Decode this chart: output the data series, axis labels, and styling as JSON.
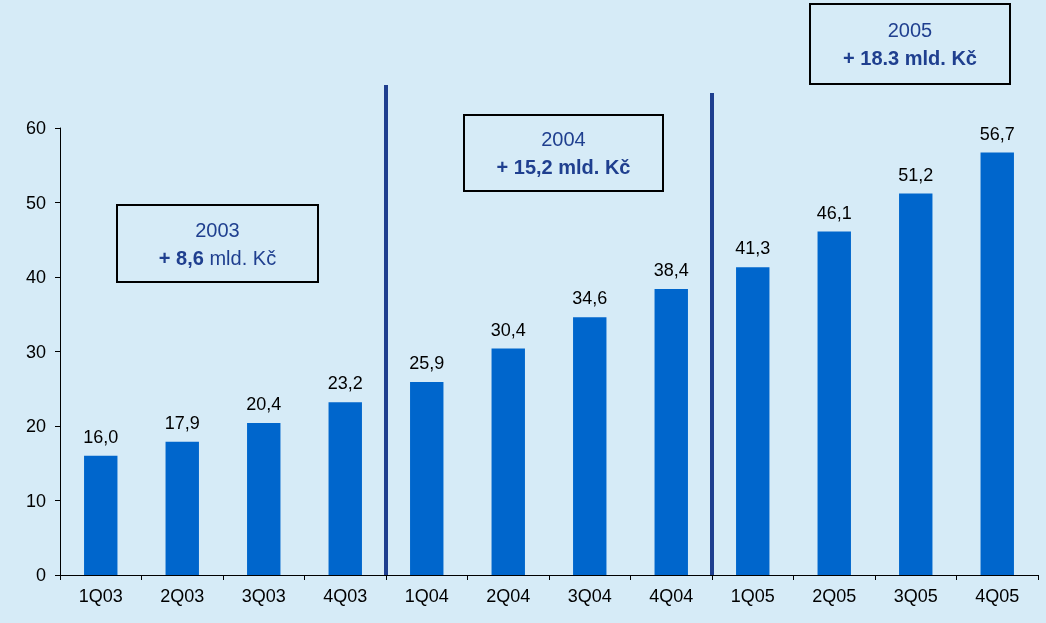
{
  "chart_data": {
    "type": "bar",
    "categories": [
      "1Q03",
      "2Q03",
      "3Q03",
      "4Q03",
      "1Q04",
      "2Q04",
      "3Q04",
      "4Q04",
      "1Q05",
      "2Q05",
      "3Q05",
      "4Q05"
    ],
    "values": [
      16.0,
      17.9,
      20.4,
      23.2,
      25.9,
      30.4,
      34.6,
      38.4,
      41.3,
      46.1,
      51.2,
      56.7
    ],
    "value_labels": [
      "16,0",
      "17,9",
      "20,4",
      "23,2",
      "25,9",
      "30,4",
      "34,6",
      "38,4",
      "41,3",
      "46,1",
      "51,2",
      "56,7"
    ],
    "color": "#0066cc",
    "ylim": [
      0,
      60
    ],
    "yticks": [
      0,
      10,
      20,
      30,
      40,
      50,
      60
    ],
    "grid": false,
    "annotations": [
      "2003\n+ 8,6 mld. Kč",
      "2004\n+ 15,2 mld. Kč",
      "2005\n+ 18.3 mld. Kč"
    ]
  }
}
